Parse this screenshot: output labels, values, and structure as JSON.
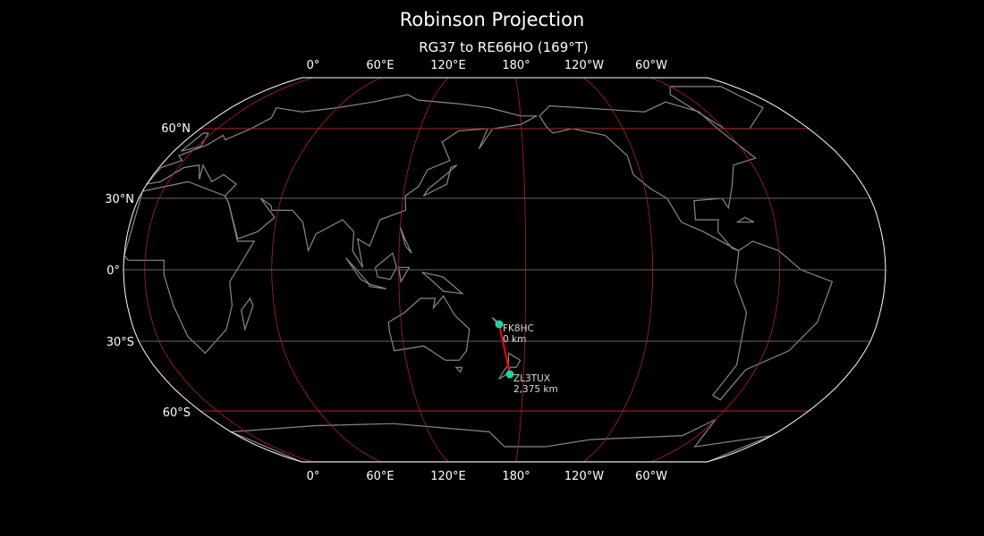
{
  "title": "Robinson Projection",
  "subtitle": "RG37 to RE66HO (169°T)",
  "lon_labels": [
    "0°",
    "60°E",
    "120°E",
    "180°",
    "120°W",
    "60°W"
  ],
  "lat_labels": [
    "60°N",
    "30°N",
    "0°",
    "30°S",
    "60°S"
  ],
  "stations": [
    {
      "call": "FK8HC",
      "distance": "0 km"
    },
    {
      "call": "ZL3TUX",
      "distance": "2,375 km"
    }
  ],
  "colors": {
    "background": "#000000",
    "coastline": "#888888",
    "graticule_red": "#b22222",
    "graticule_gray": "#666666",
    "path": "#ff0000",
    "marker": "#1fd6a0",
    "outline": "#ffffff"
  }
}
